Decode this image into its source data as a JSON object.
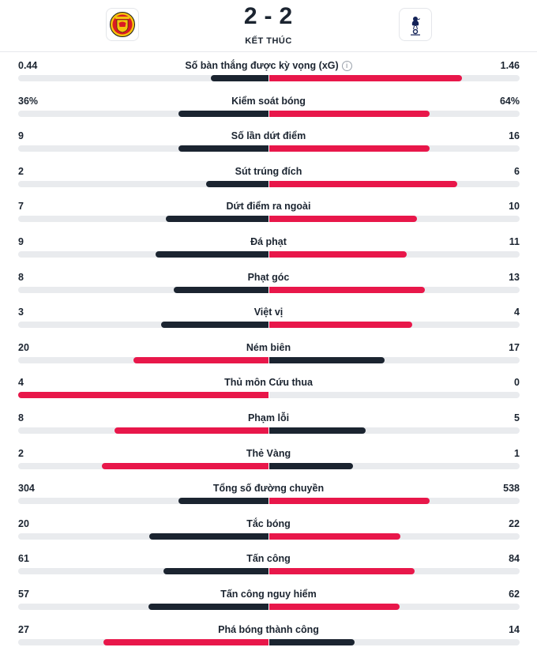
{
  "match": {
    "home_score": "2",
    "score_separator": "-",
    "away_score": "2",
    "status": "KẾT THÚC",
    "home_team_crest": "manchester-united-crest",
    "away_team_crest": "tottenham-hotspur-crest"
  },
  "colors": {
    "leading": "#e8174a",
    "trailing": "#1b2430",
    "track": "#e9ebee"
  },
  "stats": [
    {
      "label": "Số bàn thắng được kỳ vọng (xG)",
      "home": "0.44",
      "away": "1.46",
      "home_fill": 0.23,
      "away_fill": 0.77,
      "home_color": "dark",
      "away_color": "red",
      "info": "i"
    },
    {
      "label": "Kiểm soát bóng",
      "home": "36%",
      "away": "64%",
      "home_fill": 0.36,
      "away_fill": 0.64,
      "home_color": "dark",
      "away_color": "red"
    },
    {
      "label": "Số lần dứt điểm",
      "home": "9",
      "away": "16",
      "home_fill": 0.36,
      "away_fill": 0.64,
      "home_color": "dark",
      "away_color": "red"
    },
    {
      "label": "Sút trúng đích",
      "home": "2",
      "away": "6",
      "home_fill": 0.25,
      "away_fill": 0.75,
      "home_color": "dark",
      "away_color": "red"
    },
    {
      "label": "Dứt điểm ra ngoài",
      "home": "7",
      "away": "10",
      "home_fill": 0.41,
      "away_fill": 0.59,
      "home_color": "dark",
      "away_color": "red"
    },
    {
      "label": "Đá phạt",
      "home": "9",
      "away": "11",
      "home_fill": 0.45,
      "away_fill": 0.55,
      "home_color": "dark",
      "away_color": "red"
    },
    {
      "label": "Phạt góc",
      "home": "8",
      "away": "13",
      "home_fill": 0.38,
      "away_fill": 0.62,
      "home_color": "dark",
      "away_color": "red"
    },
    {
      "label": "Việt vị",
      "home": "3",
      "away": "4",
      "home_fill": 0.43,
      "away_fill": 0.57,
      "home_color": "dark",
      "away_color": "red"
    },
    {
      "label": "Ném biên",
      "home": "20",
      "away": "17",
      "home_fill": 0.54,
      "away_fill": 0.46,
      "home_color": "red",
      "away_color": "dark"
    },
    {
      "label": "Thủ môn Cứu thua",
      "home": "4",
      "away": "0",
      "home_fill": 1.0,
      "away_fill": 0.0,
      "home_color": "red",
      "away_color": "dark"
    },
    {
      "label": "Phạm lỗi",
      "home": "8",
      "away": "5",
      "home_fill": 0.615,
      "away_fill": 0.385,
      "home_color": "red",
      "away_color": "dark"
    },
    {
      "label": "Thẻ Vàng",
      "home": "2",
      "away": "1",
      "home_fill": 0.667,
      "away_fill": 0.333,
      "home_color": "red",
      "away_color": "dark"
    },
    {
      "label": "Tổng số đường chuyền",
      "home": "304",
      "away": "538",
      "home_fill": 0.36,
      "away_fill": 0.64,
      "home_color": "dark",
      "away_color": "red"
    },
    {
      "label": "Tắc bóng",
      "home": "20",
      "away": "22",
      "home_fill": 0.476,
      "away_fill": 0.524,
      "home_color": "dark",
      "away_color": "red"
    },
    {
      "label": "Tấn công",
      "home": "61",
      "away": "84",
      "home_fill": 0.42,
      "away_fill": 0.58,
      "home_color": "dark",
      "away_color": "red"
    },
    {
      "label": "Tấn công nguy hiểm",
      "home": "57",
      "away": "62",
      "home_fill": 0.479,
      "away_fill": 0.521,
      "home_color": "dark",
      "away_color": "red"
    },
    {
      "label": "Phá bóng thành công",
      "home": "27",
      "away": "14",
      "home_fill": 0.66,
      "away_fill": 0.34,
      "home_color": "red",
      "away_color": "dark"
    }
  ]
}
